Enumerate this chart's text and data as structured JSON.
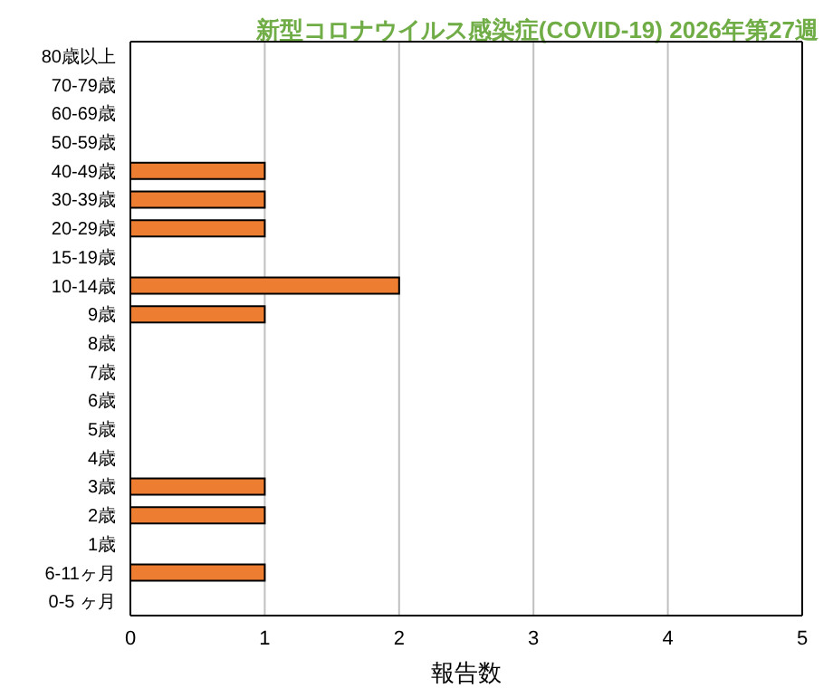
{
  "chart_data": {
    "type": "bar",
    "orientation": "horizontal",
    "title": "新型コロナウイルス感染症(COVID-19) 2026年第27週",
    "xlabel": "報告数",
    "categories": [
      "80歳以上",
      "70-79歳",
      "60-69歳",
      "50-59歳",
      "40-49歳",
      "30-39歳",
      "20-29歳",
      "15-19歳",
      "10-14歳",
      "9歳",
      "8歳",
      "7歳",
      "6歳",
      "5歳",
      "4歳",
      "3歳",
      "2歳",
      "1歳",
      "6-11ヶ月",
      "0-5 ヶ月"
    ],
    "values": [
      0,
      0,
      0,
      0,
      1,
      1,
      1,
      0,
      2,
      1,
      0,
      0,
      0,
      0,
      0,
      1,
      1,
      0,
      1,
      0
    ],
    "color": "#ed7d31",
    "xlim": [
      0,
      5
    ],
    "xticks": [
      0,
      1,
      2,
      3,
      4,
      5
    ],
    "grid": "x",
    "legend": false
  }
}
